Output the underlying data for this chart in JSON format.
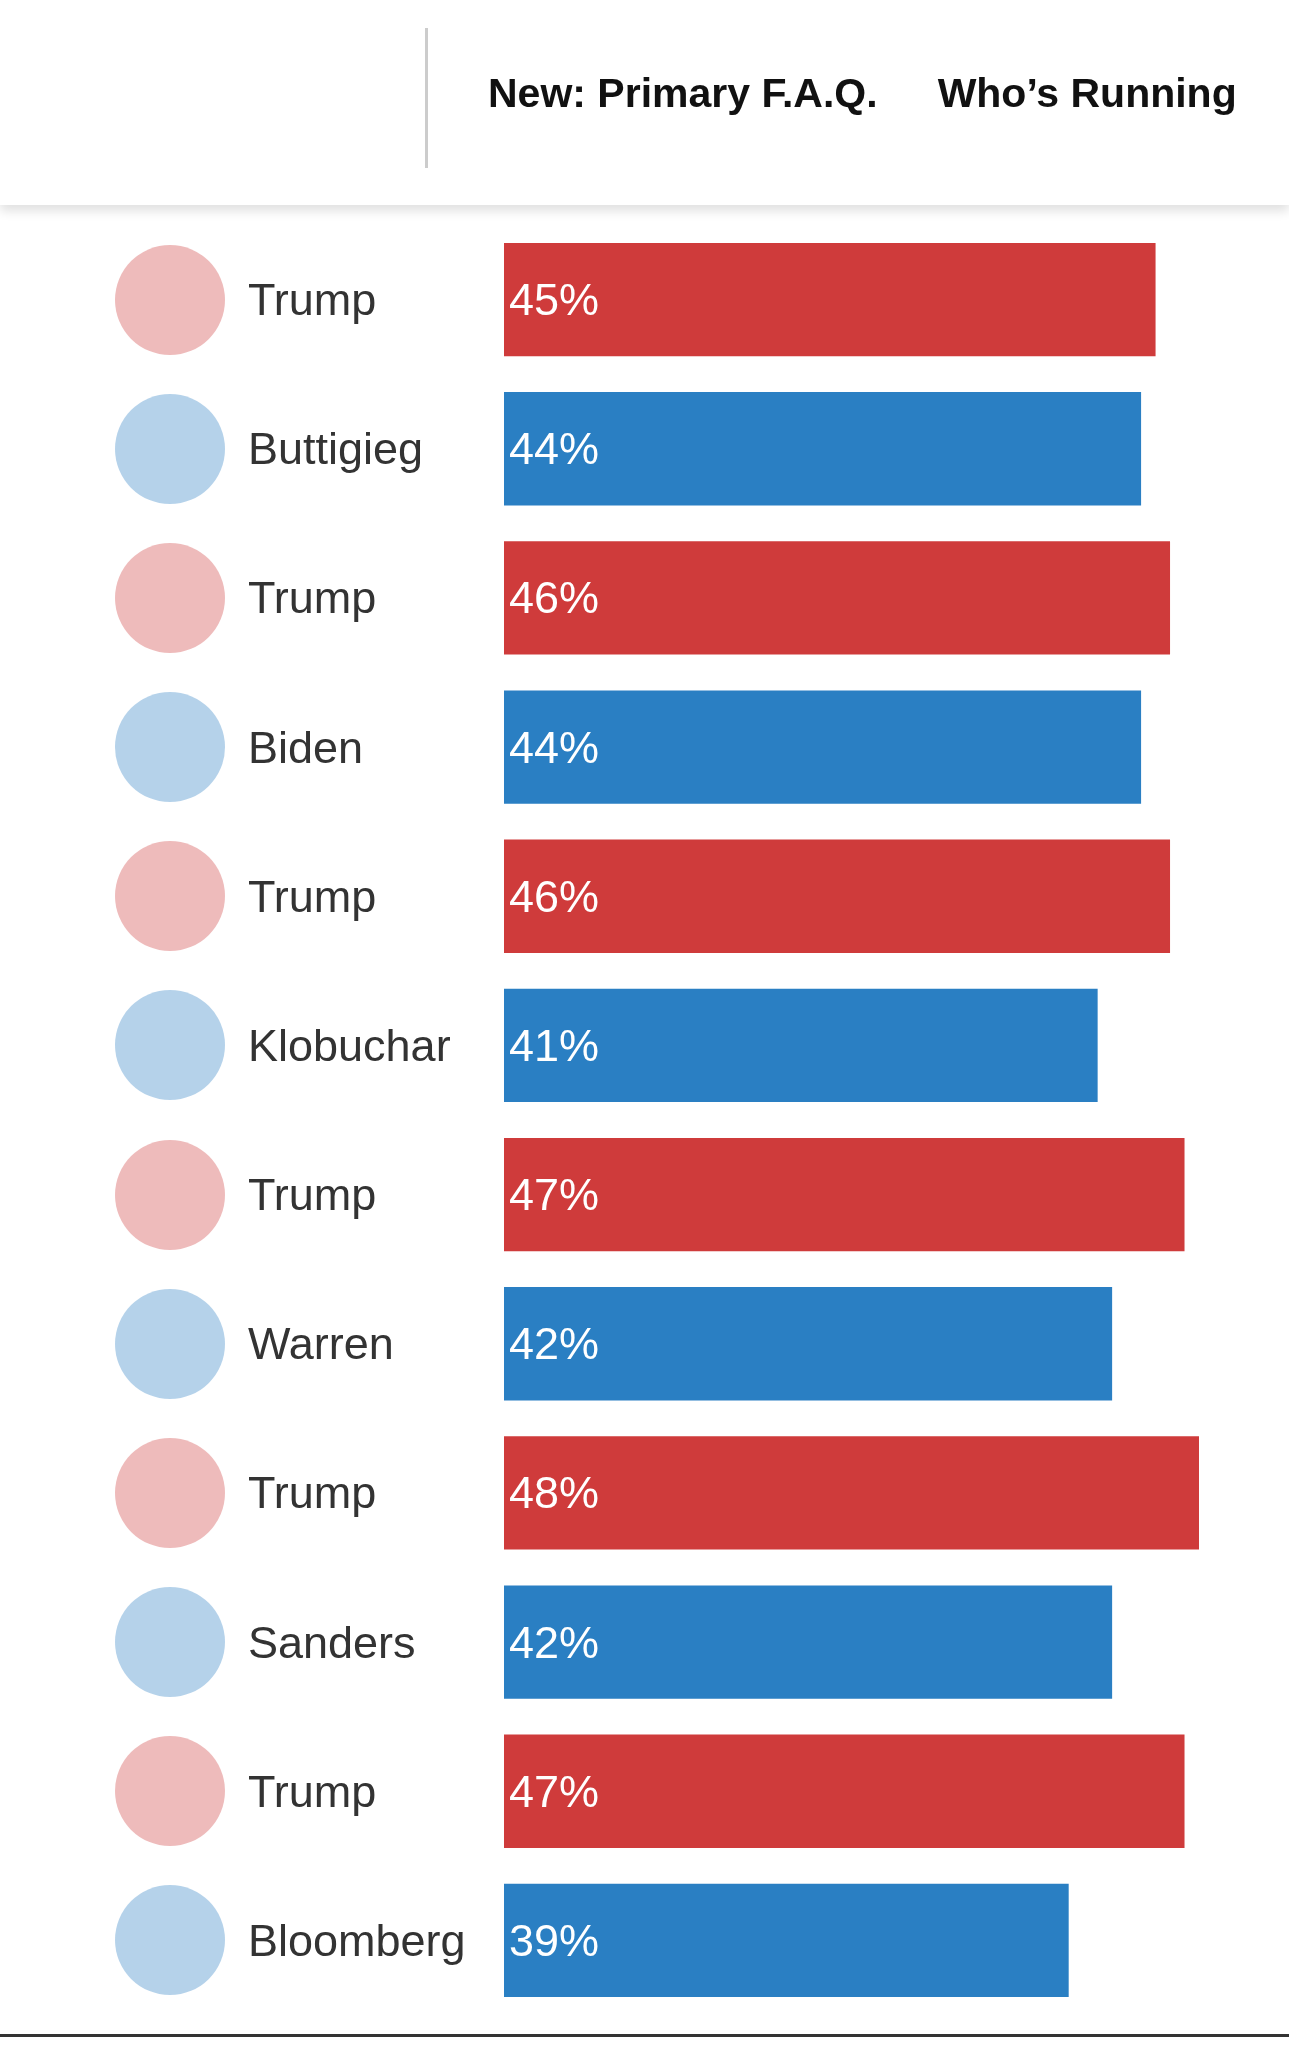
{
  "chart_data": {
    "type": "bar",
    "orientation": "horizontal",
    "categories": [
      "Trump",
      "Buttigieg",
      "Trump",
      "Biden",
      "Trump",
      "Klobuchar",
      "Trump",
      "Warren",
      "Trump",
      "Sanders",
      "Trump",
      "Bloomberg"
    ],
    "values": [
      45,
      44,
      46,
      44,
      46,
      41,
      47,
      42,
      48,
      42,
      47,
      39
    ],
    "colors": [
      "#cf3b3b",
      "#2a7fc3",
      "#cf3b3b",
      "#2a7fc3",
      "#cf3b3b",
      "#2a7fc3",
      "#cf3b3b",
      "#2a7fc3",
      "#cf3b3b",
      "#2a7fc3",
      "#cf3b3b",
      "#2a7fc3"
    ],
    "value_labels": [
      "45%",
      "44%",
      "46%",
      "44%",
      "46%",
      "41%",
      "47%",
      "42%",
      "48%",
      "42%",
      "47%",
      "39%"
    ],
    "annotations": [
      "New: Primary F.A.Q.",
      "Who’s Running"
    ],
    "grid": false
  }
}
